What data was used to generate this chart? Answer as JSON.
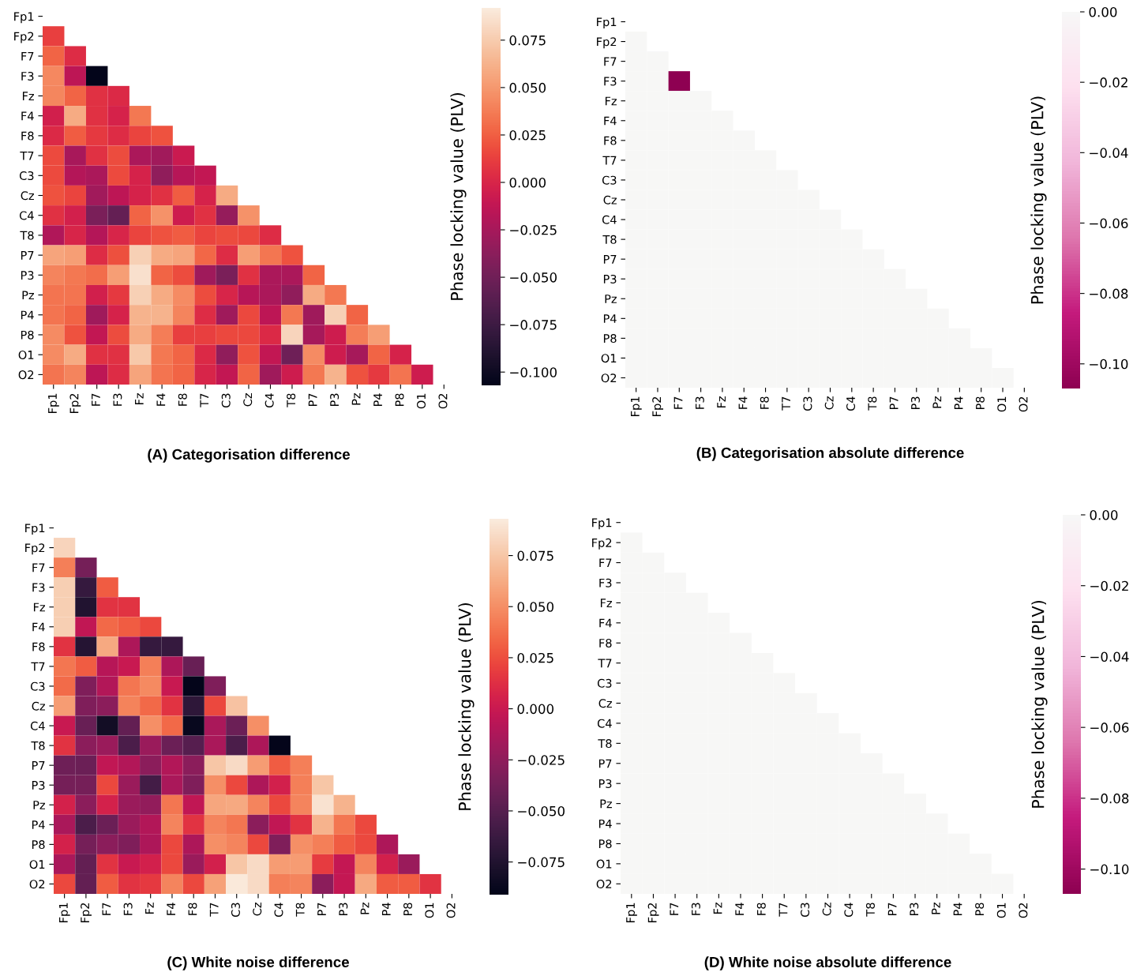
{
  "chart_data": [
    {
      "type": "heatmap",
      "title": "(A) Categorisation difference",
      "clabel": "Phase locking value (PLV)",
      "categories": [
        "Fp1",
        "Fp2",
        "F7",
        "F3",
        "Fz",
        "F4",
        "F8",
        "T7",
        "C3",
        "Cz",
        "C4",
        "T8",
        "P7",
        "P3",
        "Pz",
        "P4",
        "P8",
        "O1",
        "O2"
      ],
      "y_categories": [
        "Fp1",
        "Fp2",
        "F7",
        "F3",
        "Fz",
        "F4",
        "F8",
        "T7",
        "C3",
        "Cz",
        "C4",
        "T8",
        "P7",
        "P3",
        "Pz",
        "P4",
        "P8",
        "O1",
        "O2"
      ],
      "clim": [
        -0.107,
        0.092
      ],
      "cticks": [
        {
          "value": 0.075,
          "label": "0.075"
        },
        {
          "value": 0.05,
          "label": "0.050"
        },
        {
          "value": 0.025,
          "label": "0.025"
        },
        {
          "value": 0.0,
          "label": "0.000"
        },
        {
          "value": -0.025,
          "label": "−0.025"
        },
        {
          "value": -0.05,
          "label": "−0.050"
        },
        {
          "value": -0.075,
          "label": "−0.075"
        },
        {
          "value": -0.1,
          "label": "−0.100"
        }
      ],
      "cells": [
        [
          null,
          null,
          null,
          null,
          null,
          null,
          null,
          null,
          null,
          null,
          null,
          null,
          null,
          null,
          null,
          null,
          null,
          null,
          null
        ],
        [
          0.012,
          null,
          null,
          null,
          null,
          null,
          null,
          null,
          null,
          null,
          null,
          null,
          null,
          null,
          null,
          null,
          null,
          null,
          null
        ],
        [
          0.027,
          0.004,
          null,
          null,
          null,
          null,
          null,
          null,
          null,
          null,
          null,
          null,
          null,
          null,
          null,
          null,
          null,
          null,
          null
        ],
        [
          0.043,
          -0.014,
          -0.107,
          null,
          null,
          null,
          null,
          null,
          null,
          null,
          null,
          null,
          null,
          null,
          null,
          null,
          null,
          null,
          null
        ],
        [
          0.042,
          0.027,
          0.006,
          0.002,
          null,
          null,
          null,
          null,
          null,
          null,
          null,
          null,
          null,
          null,
          null,
          null,
          null,
          null,
          null
        ],
        [
          -0.004,
          0.059,
          0.006,
          -0.002,
          0.036,
          null,
          null,
          null,
          null,
          null,
          null,
          null,
          null,
          null,
          null,
          null,
          null,
          null,
          null
        ],
        [
          0.002,
          0.024,
          0.01,
          0.004,
          0.015,
          0.02,
          null,
          null,
          null,
          null,
          null,
          null,
          null,
          null,
          null,
          null,
          null,
          null,
          null
        ],
        [
          0.017,
          -0.024,
          0.006,
          0.018,
          -0.023,
          -0.027,
          -0.008,
          null,
          null,
          null,
          null,
          null,
          null,
          null,
          null,
          null,
          null,
          null,
          null
        ],
        [
          0.017,
          -0.019,
          -0.023,
          0.017,
          -0.002,
          -0.035,
          -0.017,
          -0.012,
          null,
          null,
          null,
          null,
          null,
          null,
          null,
          null,
          null,
          null,
          null
        ],
        [
          0.02,
          0.015,
          -0.027,
          -0.014,
          -0.002,
          0.006,
          0.024,
          -0.002,
          0.059,
          null,
          null,
          null,
          null,
          null,
          null,
          null,
          null,
          null,
          null
        ],
        [
          0.006,
          -0.003,
          -0.045,
          -0.055,
          0.027,
          0.047,
          -0.006,
          0.006,
          -0.033,
          0.047,
          null,
          null,
          null,
          null,
          null,
          null,
          null,
          null,
          null
        ],
        [
          -0.02,
          0.0,
          -0.019,
          0.0,
          0.015,
          0.02,
          0.024,
          0.015,
          0.018,
          0.016,
          0.004,
          null,
          null,
          null,
          null,
          null,
          null,
          null,
          null
        ],
        [
          0.056,
          0.053,
          0.004,
          0.019,
          0.078,
          0.059,
          0.056,
          0.029,
          0.004,
          0.053,
          0.035,
          0.02,
          null,
          null,
          null,
          null,
          null,
          null,
          null
        ],
        [
          0.041,
          0.036,
          0.031,
          0.053,
          0.086,
          0.027,
          0.018,
          -0.028,
          -0.045,
          0.006,
          -0.023,
          -0.023,
          0.027,
          null,
          null,
          null,
          null,
          null,
          null
        ],
        [
          0.034,
          0.034,
          -0.004,
          0.01,
          0.078,
          0.059,
          0.044,
          0.018,
          0.0,
          -0.017,
          -0.023,
          -0.035,
          0.059,
          0.036,
          null,
          null,
          null,
          null,
          null
        ],
        [
          0.034,
          0.027,
          -0.028,
          -0.002,
          0.063,
          0.063,
          0.041,
          0.004,
          -0.028,
          0.016,
          -0.014,
          0.036,
          -0.028,
          0.078,
          0.027,
          null,
          null,
          null,
          null
        ],
        [
          0.044,
          0.02,
          -0.012,
          0.018,
          0.059,
          0.038,
          0.012,
          0.012,
          0.016,
          0.016,
          0.002,
          0.08,
          -0.025,
          -0.006,
          0.038,
          0.053,
          null,
          null,
          null
        ],
        [
          0.044,
          0.059,
          0.006,
          0.006,
          0.074,
          0.036,
          0.027,
          0.002,
          -0.035,
          0.02,
          -0.012,
          -0.051,
          0.044,
          -0.006,
          -0.025,
          0.027,
          -0.002,
          null,
          null
        ],
        [
          0.034,
          0.041,
          -0.014,
          0.004,
          0.056,
          0.034,
          0.027,
          0.0,
          -0.012,
          0.027,
          -0.028,
          -0.006,
          0.036,
          0.063,
          0.02,
          0.01,
          0.034,
          -0.006,
          null
        ]
      ]
    },
    {
      "type": "heatmap",
      "title": "(B) Categorisation absolute difference",
      "clabel": "Phase locking value (PLV)",
      "categories": [
        "Fp1",
        "Fp2",
        "F7",
        "F3",
        "Fz",
        "F4",
        "F8",
        "T7",
        "C3",
        "Cz",
        "C4",
        "T8",
        "P7",
        "P3",
        "Pz",
        "P4",
        "P8",
        "O1",
        "O2"
      ],
      "y_categories": [
        "Fp1",
        "Fp2",
        "F7",
        "F3",
        "Fz",
        "F4",
        "F8",
        "T7",
        "C3",
        "Cz",
        "C4",
        "T8",
        "P7",
        "P3",
        "Pz",
        "P4",
        "P8",
        "O1",
        "O2"
      ],
      "clim": [
        -0.107,
        0.0
      ],
      "cticks": [
        {
          "value": 0.0,
          "label": "0.00"
        },
        {
          "value": -0.02,
          "label": "−0.02"
        },
        {
          "value": -0.04,
          "label": "−0.04"
        },
        {
          "value": -0.06,
          "label": "−0.06"
        },
        {
          "value": -0.08,
          "label": "−0.08"
        },
        {
          "value": -0.1,
          "label": "−0.10"
        }
      ],
      "cells": [
        [
          null,
          null,
          null,
          null,
          null,
          null,
          null,
          null,
          null,
          null,
          null,
          null,
          null,
          null,
          null,
          null,
          null,
          null,
          null
        ],
        [
          0,
          null,
          null,
          null,
          null,
          null,
          null,
          null,
          null,
          null,
          null,
          null,
          null,
          null,
          null,
          null,
          null,
          null,
          null
        ],
        [
          0,
          0,
          null,
          null,
          null,
          null,
          null,
          null,
          null,
          null,
          null,
          null,
          null,
          null,
          null,
          null,
          null,
          null,
          null
        ],
        [
          0,
          0,
          -0.107,
          null,
          null,
          null,
          null,
          null,
          null,
          null,
          null,
          null,
          null,
          null,
          null,
          null,
          null,
          null,
          null
        ],
        [
          0,
          0,
          0,
          0,
          null,
          null,
          null,
          null,
          null,
          null,
          null,
          null,
          null,
          null,
          null,
          null,
          null,
          null,
          null
        ],
        [
          0,
          0,
          0,
          0,
          0,
          null,
          null,
          null,
          null,
          null,
          null,
          null,
          null,
          null,
          null,
          null,
          null,
          null,
          null
        ],
        [
          0,
          0,
          0,
          0,
          0,
          0,
          null,
          null,
          null,
          null,
          null,
          null,
          null,
          null,
          null,
          null,
          null,
          null,
          null
        ],
        [
          0,
          0,
          0,
          0,
          0,
          0,
          0,
          null,
          null,
          null,
          null,
          null,
          null,
          null,
          null,
          null,
          null,
          null,
          null
        ],
        [
          0,
          0,
          0,
          0,
          0,
          0,
          0,
          0,
          null,
          null,
          null,
          null,
          null,
          null,
          null,
          null,
          null,
          null,
          null
        ],
        [
          0,
          0,
          0,
          0,
          0,
          0,
          0,
          0,
          0,
          null,
          null,
          null,
          null,
          null,
          null,
          null,
          null,
          null,
          null
        ],
        [
          0,
          0,
          0,
          0,
          0,
          0,
          0,
          0,
          0,
          0,
          null,
          null,
          null,
          null,
          null,
          null,
          null,
          null,
          null
        ],
        [
          0,
          0,
          0,
          0,
          0,
          0,
          0,
          0,
          0,
          0,
          0,
          null,
          null,
          null,
          null,
          null,
          null,
          null,
          null
        ],
        [
          0,
          0,
          0,
          0,
          0,
          0,
          0,
          0,
          0,
          0,
          0,
          0,
          null,
          null,
          null,
          null,
          null,
          null,
          null
        ],
        [
          0,
          0,
          0,
          0,
          0,
          0,
          0,
          0,
          0,
          0,
          0,
          0,
          0,
          null,
          null,
          null,
          null,
          null,
          null
        ],
        [
          0,
          0,
          0,
          0,
          0,
          0,
          0,
          0,
          0,
          0,
          0,
          0,
          0,
          0,
          null,
          null,
          null,
          null,
          null
        ],
        [
          0,
          0,
          0,
          0,
          0,
          0,
          0,
          0,
          0,
          0,
          0,
          0,
          0,
          0,
          0,
          null,
          null,
          null,
          null
        ],
        [
          0,
          0,
          0,
          0,
          0,
          0,
          0,
          0,
          0,
          0,
          0,
          0,
          0,
          0,
          0,
          0,
          null,
          null,
          null
        ],
        [
          0,
          0,
          0,
          0,
          0,
          0,
          0,
          0,
          0,
          0,
          0,
          0,
          0,
          0,
          0,
          0,
          0,
          null,
          null
        ],
        [
          0,
          0,
          0,
          0,
          0,
          0,
          0,
          0,
          0,
          0,
          0,
          0,
          0,
          0,
          0,
          0,
          0,
          0,
          null
        ]
      ]
    },
    {
      "type": "heatmap",
      "title": "(C) White noise difference",
      "clabel": "Phase locking value (PLV)",
      "categories": [
        "Fp1",
        "Fp2",
        "F7",
        "F3",
        "Fz",
        "F4",
        "F8",
        "T7",
        "C3",
        "Cz",
        "C4",
        "T8",
        "P7",
        "P3",
        "Pz",
        "P4",
        "P8",
        "O1",
        "O2"
      ],
      "y_categories": [
        "Fp1",
        "Fp2",
        "F7",
        "F3",
        "Fz",
        "F4",
        "F8",
        "T7",
        "C3",
        "Cz",
        "C4",
        "T8",
        "P7",
        "P3",
        "Pz",
        "P4",
        "P8",
        "O1",
        "O2"
      ],
      "clim": [
        -0.091,
        0.093
      ],
      "cticks": [
        {
          "value": 0.075,
          "label": "0.075"
        },
        {
          "value": 0.05,
          "label": "0.050"
        },
        {
          "value": 0.025,
          "label": "0.025"
        },
        {
          "value": 0.0,
          "label": "0.000"
        },
        {
          "value": -0.025,
          "label": "−0.025"
        },
        {
          "value": -0.05,
          "label": "−0.050"
        },
        {
          "value": -0.075,
          "label": "−0.075"
        }
      ],
      "cells": [
        [
          null,
          null,
          null,
          null,
          null,
          null,
          null,
          null,
          null,
          null,
          null,
          null,
          null,
          null,
          null,
          null,
          null,
          null,
          null
        ],
        [
          0.082,
          null,
          null,
          null,
          null,
          null,
          null,
          null,
          null,
          null,
          null,
          null,
          null,
          null,
          null,
          null,
          null,
          null,
          null
        ],
        [
          0.044,
          -0.036,
          null,
          null,
          null,
          null,
          null,
          null,
          null,
          null,
          null,
          null,
          null,
          null,
          null,
          null,
          null,
          null,
          null
        ],
        [
          0.079,
          -0.065,
          0.03,
          null,
          null,
          null,
          null,
          null,
          null,
          null,
          null,
          null,
          null,
          null,
          null,
          null,
          null,
          null,
          null
        ],
        [
          0.079,
          -0.075,
          0.014,
          0.014,
          null,
          null,
          null,
          null,
          null,
          null,
          null,
          null,
          null,
          null,
          null,
          null,
          null,
          null,
          null
        ],
        [
          0.079,
          -0.004,
          0.035,
          0.03,
          0.023,
          null,
          null,
          null,
          null,
          null,
          null,
          null,
          null,
          null,
          null,
          null,
          null,
          null,
          null
        ],
        [
          0.014,
          -0.073,
          0.062,
          -0.012,
          -0.065,
          -0.065,
          null,
          null,
          null,
          null,
          null,
          null,
          null,
          null,
          null,
          null,
          null,
          null,
          null
        ],
        [
          0.04,
          0.03,
          -0.008,
          0.0,
          0.044,
          -0.012,
          -0.042,
          null,
          null,
          null,
          null,
          null,
          null,
          null,
          null,
          null,
          null,
          null,
          null
        ],
        [
          0.036,
          -0.032,
          -0.01,
          0.04,
          0.048,
          0.0,
          -0.09,
          -0.032,
          null,
          null,
          null,
          null,
          null,
          null,
          null,
          null,
          null,
          null,
          null
        ],
        [
          0.056,
          -0.032,
          -0.027,
          0.045,
          0.035,
          0.014,
          -0.068,
          0.023,
          0.073,
          null,
          null,
          null,
          null,
          null,
          null,
          null,
          null,
          null,
          null
        ],
        [
          0.0,
          -0.042,
          -0.082,
          -0.044,
          0.05,
          0.035,
          -0.087,
          -0.014,
          -0.04,
          0.05,
          null,
          null,
          null,
          null,
          null,
          null,
          null,
          null,
          null
        ],
        [
          0.014,
          -0.027,
          -0.02,
          -0.055,
          -0.02,
          -0.04,
          -0.05,
          -0.014,
          -0.055,
          -0.012,
          -0.09,
          null,
          null,
          null,
          null,
          null,
          null,
          null,
          null
        ],
        [
          -0.039,
          -0.04,
          -0.004,
          -0.01,
          -0.027,
          -0.01,
          -0.027,
          0.075,
          0.085,
          0.056,
          0.03,
          0.044,
          null,
          null,
          null,
          null,
          null,
          null,
          null
        ],
        [
          -0.036,
          -0.036,
          0.023,
          -0.02,
          -0.058,
          -0.014,
          -0.032,
          0.05,
          0.023,
          -0.012,
          0.005,
          0.044,
          0.075,
          null,
          null,
          null,
          null,
          null,
          null
        ],
        [
          0.006,
          -0.027,
          0.006,
          -0.02,
          -0.024,
          0.04,
          -0.004,
          0.06,
          0.062,
          0.046,
          0.023,
          0.046,
          0.088,
          0.066,
          null,
          null,
          null,
          null,
          null
        ],
        [
          -0.014,
          -0.055,
          -0.04,
          -0.02,
          -0.01,
          0.046,
          0.014,
          0.046,
          0.04,
          -0.027,
          -0.004,
          0.014,
          0.066,
          0.04,
          0.023,
          null,
          null,
          null,
          null
        ],
        [
          0.006,
          -0.036,
          -0.027,
          -0.032,
          -0.012,
          0.023,
          -0.012,
          0.05,
          0.046,
          0.023,
          -0.032,
          0.05,
          0.044,
          0.03,
          0.023,
          -0.012,
          null,
          null,
          null
        ],
        [
          -0.014,
          -0.044,
          0.014,
          0.0,
          0.005,
          0.023,
          -0.02,
          0.005,
          0.075,
          0.085,
          0.056,
          0.056,
          0.018,
          -0.002,
          0.046,
          0.005,
          -0.02,
          null,
          null
        ],
        [
          0.023,
          -0.044,
          0.03,
          0.014,
          0.017,
          0.046,
          0.023,
          0.058,
          0.092,
          0.085,
          0.044,
          0.046,
          -0.027,
          -0.002,
          0.062,
          0.03,
          0.03,
          0.014,
          null
        ]
      ]
    },
    {
      "type": "heatmap",
      "title": "(D) White noise absolute difference",
      "clabel": "Phase locking value (PLV)",
      "categories": [
        "Fp1",
        "Fp2",
        "F7",
        "F3",
        "Fz",
        "F4",
        "F8",
        "T7",
        "C3",
        "Cz",
        "C4",
        "T8",
        "P7",
        "P3",
        "Pz",
        "P4",
        "P8",
        "O1",
        "O2"
      ],
      "y_categories": [
        "Fp1",
        "Fp2",
        "F7",
        "F3",
        "Fz",
        "F4",
        "F8",
        "T7",
        "C3",
        "Cz",
        "C4",
        "T8",
        "P7",
        "P3",
        "Pz",
        "P4",
        "P8",
        "O1",
        "O2"
      ],
      "clim": [
        -0.107,
        0.0
      ],
      "cticks": [
        {
          "value": 0.0,
          "label": "0.00"
        },
        {
          "value": -0.02,
          "label": "−0.02"
        },
        {
          "value": -0.04,
          "label": "−0.04"
        },
        {
          "value": -0.06,
          "label": "−0.06"
        },
        {
          "value": -0.08,
          "label": "−0.08"
        },
        {
          "value": -0.1,
          "label": "−0.10"
        }
      ],
      "cells": [
        [
          null,
          null,
          null,
          null,
          null,
          null,
          null,
          null,
          null,
          null,
          null,
          null,
          null,
          null,
          null,
          null,
          null,
          null,
          null
        ],
        [
          0,
          null,
          null,
          null,
          null,
          null,
          null,
          null,
          null,
          null,
          null,
          null,
          null,
          null,
          null,
          null,
          null,
          null,
          null
        ],
        [
          0,
          0,
          null,
          null,
          null,
          null,
          null,
          null,
          null,
          null,
          null,
          null,
          null,
          null,
          null,
          null,
          null,
          null,
          null
        ],
        [
          0,
          0,
          0,
          null,
          null,
          null,
          null,
          null,
          null,
          null,
          null,
          null,
          null,
          null,
          null,
          null,
          null,
          null,
          null
        ],
        [
          0,
          0,
          0,
          0,
          null,
          null,
          null,
          null,
          null,
          null,
          null,
          null,
          null,
          null,
          null,
          null,
          null,
          null,
          null
        ],
        [
          0,
          0,
          0,
          0,
          0,
          null,
          null,
          null,
          null,
          null,
          null,
          null,
          null,
          null,
          null,
          null,
          null,
          null,
          null
        ],
        [
          0,
          0,
          0,
          0,
          0,
          0,
          null,
          null,
          null,
          null,
          null,
          null,
          null,
          null,
          null,
          null,
          null,
          null,
          null
        ],
        [
          0,
          0,
          0,
          0,
          0,
          0,
          0,
          null,
          null,
          null,
          null,
          null,
          null,
          null,
          null,
          null,
          null,
          null,
          null
        ],
        [
          0,
          0,
          0,
          0,
          0,
          0,
          0,
          0,
          null,
          null,
          null,
          null,
          null,
          null,
          null,
          null,
          null,
          null,
          null
        ],
        [
          0,
          0,
          0,
          0,
          0,
          0,
          0,
          0,
          0,
          null,
          null,
          null,
          null,
          null,
          null,
          null,
          null,
          null,
          null
        ],
        [
          0,
          0,
          0,
          0,
          0,
          0,
          0,
          0,
          0,
          0,
          null,
          null,
          null,
          null,
          null,
          null,
          null,
          null,
          null
        ],
        [
          0,
          0,
          0,
          0,
          0,
          0,
          0,
          0,
          0,
          0,
          0,
          null,
          null,
          null,
          null,
          null,
          null,
          null,
          null
        ],
        [
          0,
          0,
          0,
          0,
          0,
          0,
          0,
          0,
          0,
          0,
          0,
          0,
          null,
          null,
          null,
          null,
          null,
          null,
          null
        ],
        [
          0,
          0,
          0,
          0,
          0,
          0,
          0,
          0,
          0,
          0,
          0,
          0,
          0,
          null,
          null,
          null,
          null,
          null,
          null
        ],
        [
          0,
          0,
          0,
          0,
          0,
          0,
          0,
          0,
          0,
          0,
          0,
          0,
          0,
          0,
          null,
          null,
          null,
          null,
          null
        ],
        [
          0,
          0,
          0,
          0,
          0,
          0,
          0,
          0,
          0,
          0,
          0,
          0,
          0,
          0,
          0,
          null,
          null,
          null,
          null
        ],
        [
          0,
          0,
          0,
          0,
          0,
          0,
          0,
          0,
          0,
          0,
          0,
          0,
          0,
          0,
          0,
          0,
          null,
          null,
          null
        ],
        [
          0,
          0,
          0,
          0,
          0,
          0,
          0,
          0,
          0,
          0,
          0,
          0,
          0,
          0,
          0,
          0,
          0,
          null,
          null
        ],
        [
          0,
          0,
          0,
          0,
          0,
          0,
          0,
          0,
          0,
          0,
          0,
          0,
          0,
          0,
          0,
          0,
          0,
          0,
          null
        ]
      ]
    }
  ]
}
